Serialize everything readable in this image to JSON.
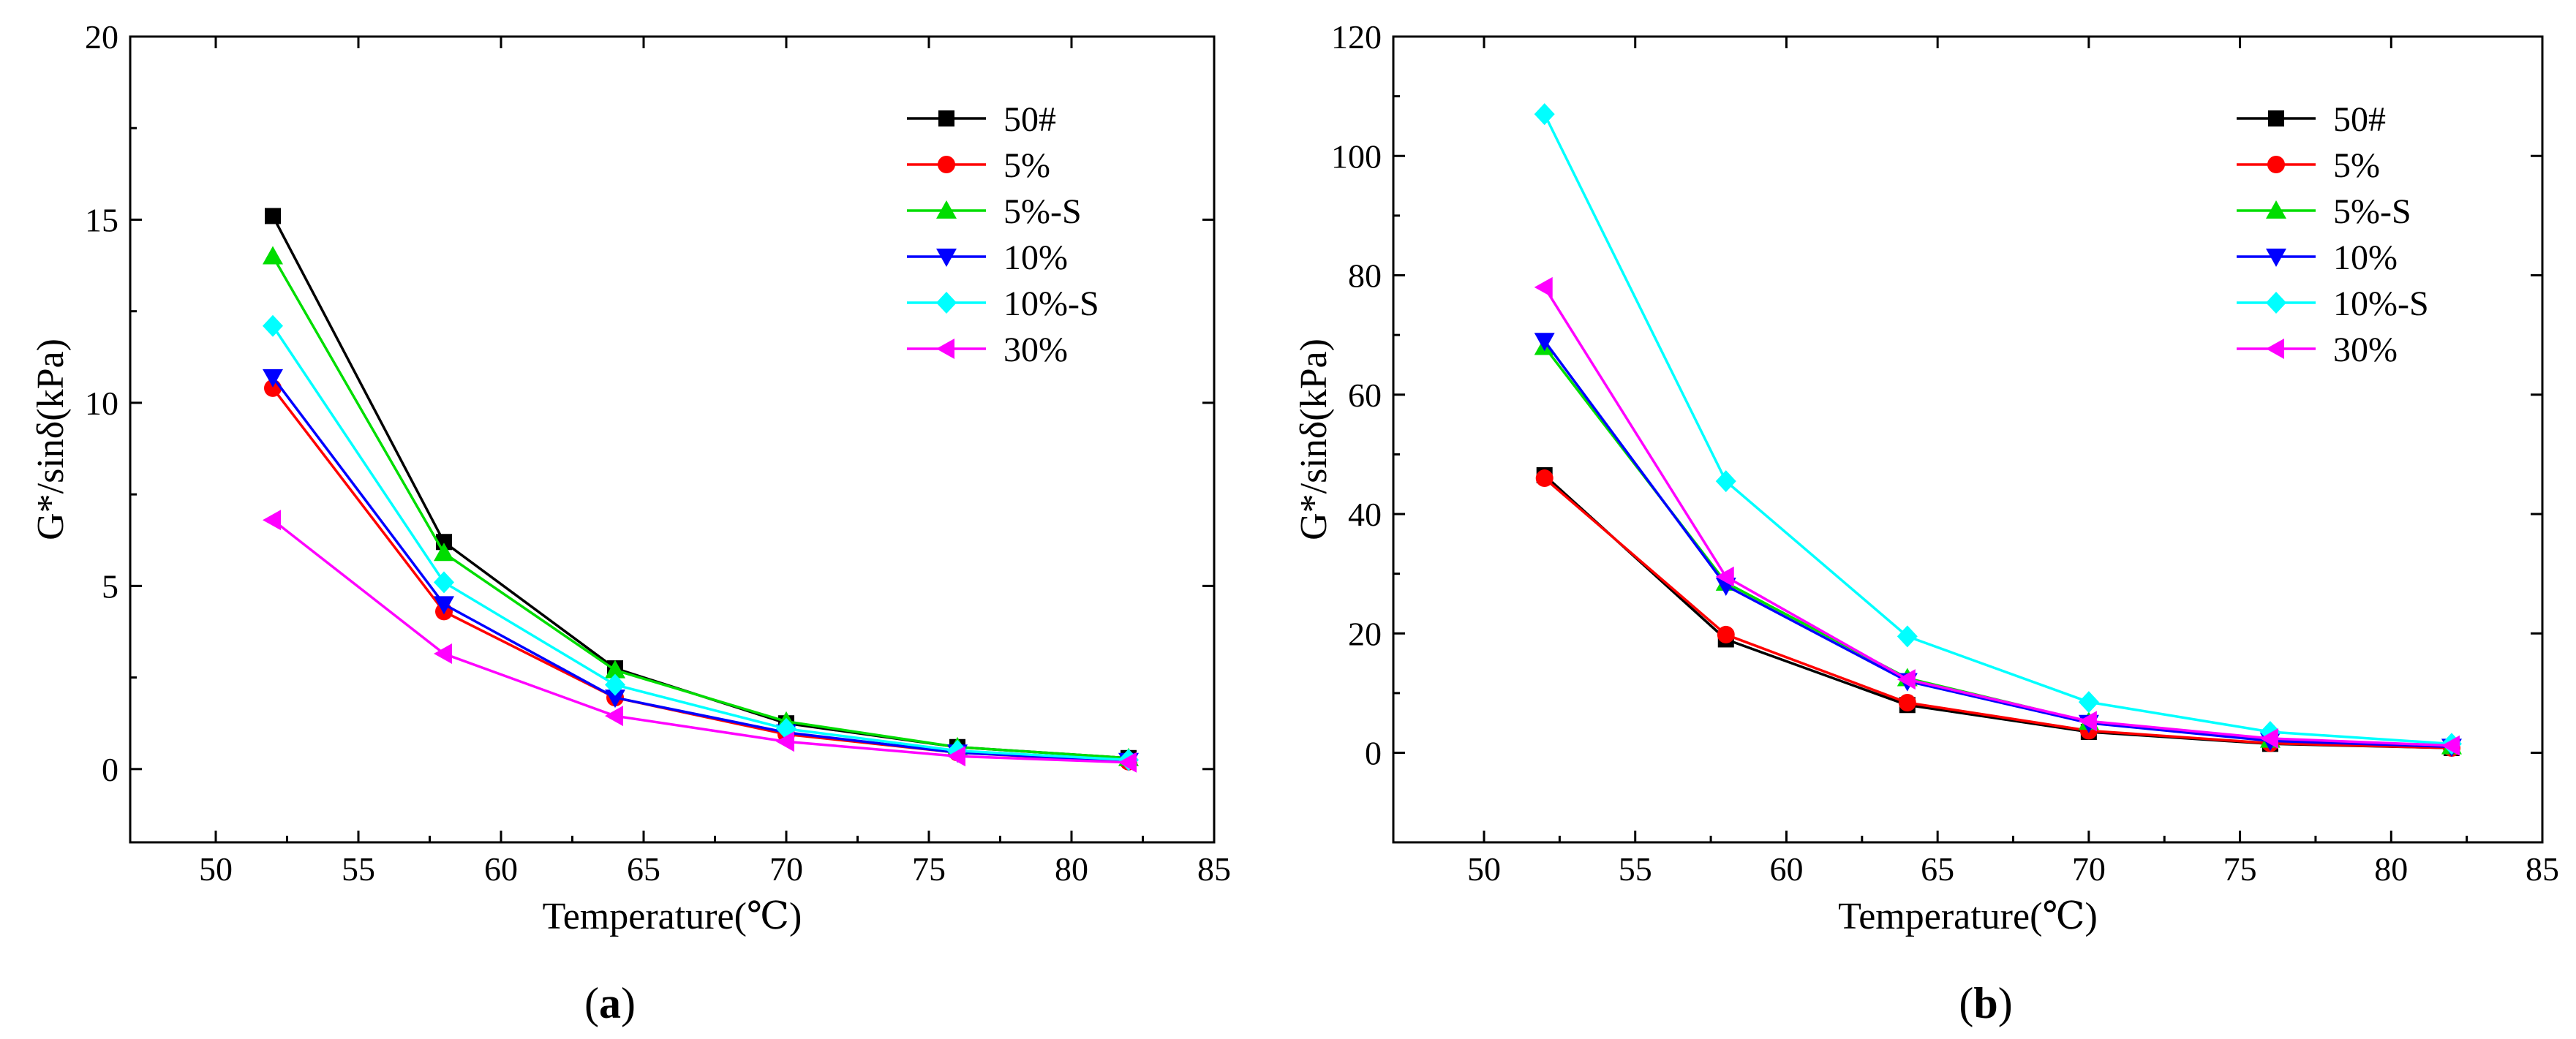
{
  "chart_data": [
    {
      "type": "line",
      "panel_label": "a",
      "xlabel": "Temperature(℃)",
      "ylabel": "G*/sinδ(kPa)",
      "xlim": [
        47,
        85
      ],
      "ylim": [
        -2,
        20
      ],
      "xticks": [
        50,
        55,
        60,
        65,
        70,
        75,
        80,
        85
      ],
      "yticks": [
        0,
        5,
        10,
        15,
        20
      ],
      "legend_position": "top-right",
      "x": [
        52,
        58,
        64,
        70,
        76,
        82
      ],
      "series": [
        {
          "name": "50#",
          "color": "#000000",
          "marker": "square",
          "values": [
            15.1,
            6.2,
            2.75,
            1.25,
            0.6,
            0.3
          ]
        },
        {
          "name": "5%",
          "color": "#ff0000",
          "marker": "circle",
          "values": [
            10.4,
            4.3,
            1.95,
            0.95,
            0.45,
            0.2
          ]
        },
        {
          "name": "5%-S",
          "color": "#00dd00",
          "marker": "triangle-up",
          "values": [
            14.0,
            5.9,
            2.7,
            1.3,
            0.6,
            0.3
          ]
        },
        {
          "name": "10%",
          "color": "#0000ff",
          "marker": "triangle-down",
          "values": [
            10.7,
            4.5,
            1.95,
            1.0,
            0.45,
            0.22
          ]
        },
        {
          "name": "10%-S",
          "color": "#00ffff",
          "marker": "diamond",
          "values": [
            12.1,
            5.1,
            2.3,
            1.1,
            0.5,
            0.25
          ]
        },
        {
          "name": "30%",
          "color": "#ff00ff",
          "marker": "triangle-left",
          "values": [
            6.8,
            3.15,
            1.45,
            0.75,
            0.35,
            0.18
          ]
        }
      ]
    },
    {
      "type": "line",
      "panel_label": "b",
      "xlabel": "Temperature(℃)",
      "ylabel": "G*/sinδ(kPa)",
      "xlim": [
        47,
        85
      ],
      "ylim": [
        -15,
        120
      ],
      "xticks": [
        50,
        55,
        60,
        65,
        70,
        75,
        80,
        85
      ],
      "yticks": [
        0,
        20,
        40,
        60,
        80,
        100,
        120
      ],
      "legend_position": "top-right",
      "x": [
        52,
        58,
        64,
        70,
        76,
        82
      ],
      "series": [
        {
          "name": "50#",
          "color": "#000000",
          "marker": "square",
          "values": [
            46.5,
            19.0,
            8.0,
            3.5,
            1.5,
            0.8
          ]
        },
        {
          "name": "5%",
          "color": "#ff0000",
          "marker": "circle",
          "values": [
            46.0,
            19.8,
            8.4,
            3.7,
            1.6,
            0.8
          ]
        },
        {
          "name": "5%-S",
          "color": "#00dd00",
          "marker": "triangle-up",
          "values": [
            68.0,
            28.5,
            12.5,
            5.2,
            2.2,
            1.1
          ]
        },
        {
          "name": "10%",
          "color": "#0000ff",
          "marker": "triangle-down",
          "values": [
            69.0,
            28.0,
            12.0,
            5.0,
            2.0,
            1.0
          ]
        },
        {
          "name": "10%-S",
          "color": "#00ffff",
          "marker": "diamond",
          "values": [
            107.0,
            45.5,
            19.5,
            8.5,
            3.5,
            1.5
          ]
        },
        {
          "name": "30%",
          "color": "#ff00ff",
          "marker": "triangle-left",
          "values": [
            78.0,
            29.5,
            12.3,
            5.3,
            2.4,
            1.2
          ]
        }
      ]
    }
  ]
}
